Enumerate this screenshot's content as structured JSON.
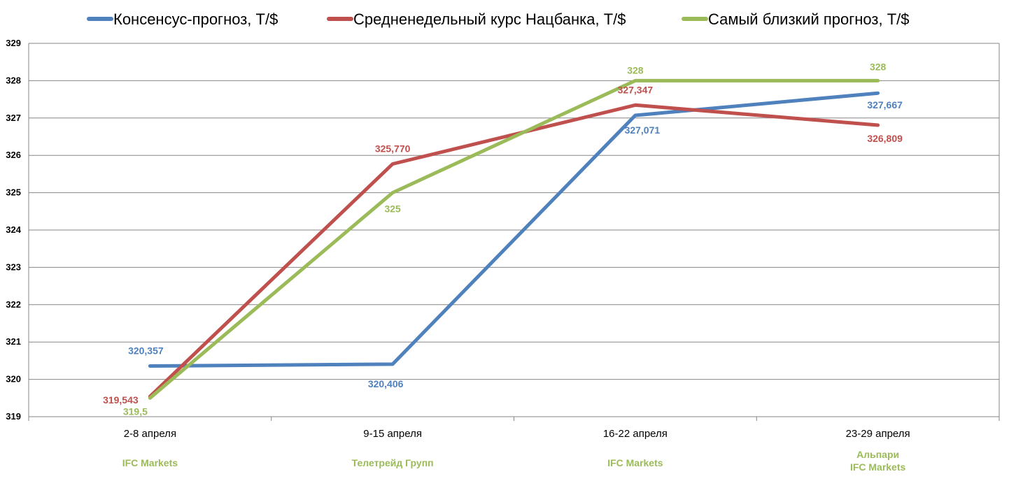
{
  "chart_data": {
    "type": "line",
    "categories": [
      "2-8 апреля",
      "9-15 апреля",
      "16-22 апреля",
      "23-29 апреля"
    ],
    "ylim": [
      319,
      329
    ],
    "yticks": [
      "319",
      "320",
      "321",
      "322",
      "323",
      "324",
      "325",
      "326",
      "327",
      "328",
      "329"
    ],
    "grid": true,
    "legend_position": "top",
    "series": [
      {
        "name": "Консенсус-прогноз, Т/$",
        "color": "#4F81BD",
        "values": [
          320.357,
          320.406,
          327.071,
          327.667
        ],
        "labels": [
          "320,357",
          "320,406",
          "327,071",
          "327,667"
        ]
      },
      {
        "name": "Средненедельный курс Нацбанка, Т/$",
        "color": "#C0504D",
        "values": [
          319.543,
          325.77,
          327.347,
          326.809
        ],
        "labels": [
          "319,543",
          "325,770",
          "327,347",
          "326,809"
        ]
      },
      {
        "name": "Самый близкий прогноз, Т/$",
        "color": "#9BBB59",
        "values": [
          319.5,
          325,
          328,
          328
        ],
        "labels": [
          "319,5",
          "325",
          "328",
          "328"
        ]
      }
    ],
    "category_annotations": [
      [
        "IFC Markets"
      ],
      [
        "Телетрейд Групп"
      ],
      [
        "IFC Markets"
      ],
      [
        "Альпари",
        "IFC Markets"
      ]
    ],
    "annotation_color": "#9BBB59"
  }
}
